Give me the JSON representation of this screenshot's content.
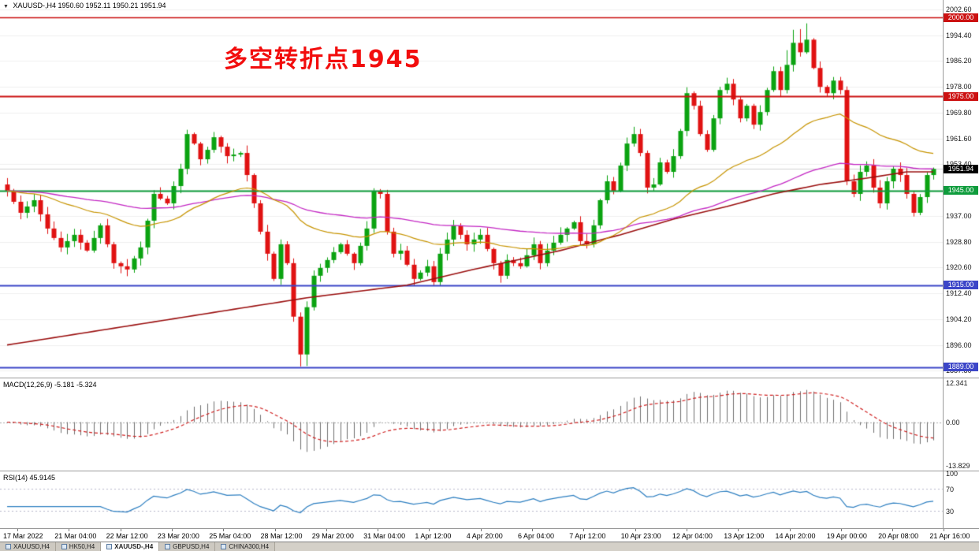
{
  "title_bar": {
    "dropdown_icon": "▼",
    "symbol": "XAUUSD-,H4",
    "ohlc": "1950.60 1952.11 1950.21 1951.94"
  },
  "annotation": {
    "text": "多空转折点1945",
    "color": "#f20d0d"
  },
  "main_chart": {
    "price_axis": {
      "min": 1886.9,
      "max": 2003.6,
      "labels": [
        "2002.60",
        "1994.40",
        "1986.20",
        "1978.00",
        "1969.80",
        "1961.60",
        "1953.40",
        "1945.20",
        "1937.00",
        "1928.80",
        "1920.60",
        "1912.40",
        "1904.20",
        "1896.00",
        "1887.80"
      ]
    },
    "levels": [
      {
        "label": "2000.00",
        "price": 2000,
        "color": "#cc1111",
        "width": 1.4
      },
      {
        "label": "1975.00",
        "price": 1975,
        "color": "#cc1111",
        "width": 2
      },
      {
        "label": "1945.00",
        "price": 1945,
        "color": "#0e9c3c",
        "width": 2
      },
      {
        "label": "1915.00",
        "price": 1915,
        "color": "#3c46c8",
        "width": 2
      },
      {
        "label": "1889.00",
        "price": 1889,
        "color": "#3c46c8",
        "width": 2
      }
    ],
    "current_price": {
      "label": "1951.94",
      "value": 1951.94,
      "badge_color": "#000000"
    }
  },
  "chart_data": {
    "type": "candlestick",
    "symbol": "XAUUSD",
    "timeframe": "H4",
    "title": "XAUUSD-,H4",
    "ylim": [
      1887.8,
      2002.6
    ],
    "x_labels": [
      "17 Mar 2022",
      "21 Mar 04:00",
      "22 Mar 12:00",
      "23 Mar 20:00",
      "25 Mar 04:00",
      "28 Mar 12:00",
      "29 Mar 20:00",
      "31 Mar 04:00",
      "1 Apr 12:00",
      "4 Apr 20:00",
      "6 Apr 04:00",
      "7 Apr 12:00",
      "10 Apr 23:00",
      "12 Apr 04:00",
      "13 Apr 12:00",
      "14 Apr 20:00",
      "19 Apr 00:00",
      "20 Apr 08:00",
      "21 Apr 16:00"
    ],
    "colors": {
      "bull": "#0ba311",
      "bear": "#e01212",
      "background": "#ffffff",
      "grid": "#f0f0f0"
    },
    "candles": {
      "closes": [
        1945,
        1941.5,
        1938,
        1940,
        1942,
        1937.5,
        1933,
        1930,
        1927,
        1929,
        1931,
        1928.5,
        1926,
        1930,
        1934,
        1928,
        1922,
        1921,
        1920,
        1923.5,
        1927,
        1935.5,
        1944,
        1942.5,
        1941,
        1946.5,
        1952,
        1963,
        1960,
        1955,
        1958,
        1962,
        1959,
        1956,
        1956.5,
        1957,
        1950,
        1941,
        1932,
        1925,
        1917,
        1928,
        1922,
        1905,
        1893,
        1908,
        1918,
        1920.5,
        1923,
        1925.5,
        1928,
        1925,
        1922,
        1927.5,
        1933,
        1945,
        1944,
        1932,
        1925,
        1926,
        1921.5,
        1917,
        1919,
        1921,
        1916,
        1925,
        1929.5,
        1934,
        1931,
        1928,
        1929.5,
        1931,
        1926.5,
        1922,
        1918,
        1923,
        1922,
        1921,
        1924.5,
        1928,
        1922,
        1926,
        1928.5,
        1931,
        1933,
        1935,
        1929,
        1928,
        1934,
        1942,
        1948,
        1945,
        1953,
        1960,
        1963,
        1957,
        1946,
        1947,
        1954,
        1951,
        1956,
        1964,
        1976,
        1972,
        1963,
        1958,
        1968,
        1977,
        1979,
        1974,
        1968,
        1972,
        1966,
        1970,
        1977,
        1983,
        1977,
        1985,
        1992,
        1989,
        1993,
        1984,
        1978,
        1976,
        1980,
        1977,
        1948,
        1944,
        1951,
        1953,
        1946,
        1941,
        1948,
        1952,
        1950,
        1944,
        1938,
        1943,
        1950,
        1951.94
      ]
    },
    "moving_averages": [
      {
        "name": "fast-ma",
        "color": "#c79400",
        "period": 34
      },
      {
        "name": "mid-ma",
        "color": "#c428c4",
        "period": 89
      },
      {
        "name": "slow-ma",
        "color": "#9b1010",
        "anchors": [
          [
            0,
            1896
          ],
          [
            15,
            1901
          ],
          [
            30,
            1906
          ],
          [
            45,
            1911
          ],
          [
            60,
            1915
          ],
          [
            70,
            1920
          ],
          [
            83,
            1926
          ],
          [
            92,
            1931
          ],
          [
            100,
            1936
          ],
          [
            108,
            1940
          ],
          [
            115,
            1944
          ],
          [
            122,
            1947
          ],
          [
            129,
            1949
          ],
          [
            135,
            1951
          ],
          [
            139,
            1951
          ]
        ]
      }
    ]
  },
  "macd": {
    "label": "MACD(12,26,9) -5.181 -5.324",
    "fast": 12,
    "slow": 26,
    "signal": 9,
    "main_value": -5.181,
    "signal_value": -5.324,
    "scale": {
      "max": "12.341",
      "zero": "0.00",
      "min": "-13.829"
    },
    "histogram_color": "#707070",
    "signal_color": "#d02020"
  },
  "rsi": {
    "label": "RSI(14) 45.9145",
    "period": 14,
    "value": 45.9145,
    "scale_labels": [
      "100",
      "70",
      "30"
    ],
    "levels": [
      70,
      30
    ],
    "line_color": "#2d7fc1"
  },
  "tab_bar": {
    "active_index": 2,
    "tabs": [
      {
        "label": "XAUUSD,H4"
      },
      {
        "label": "HK50,H4"
      },
      {
        "label": "XAUUSD-,H4"
      },
      {
        "label": "GBPUSD,H4"
      },
      {
        "label": "CHINA300,H4"
      }
    ]
  }
}
